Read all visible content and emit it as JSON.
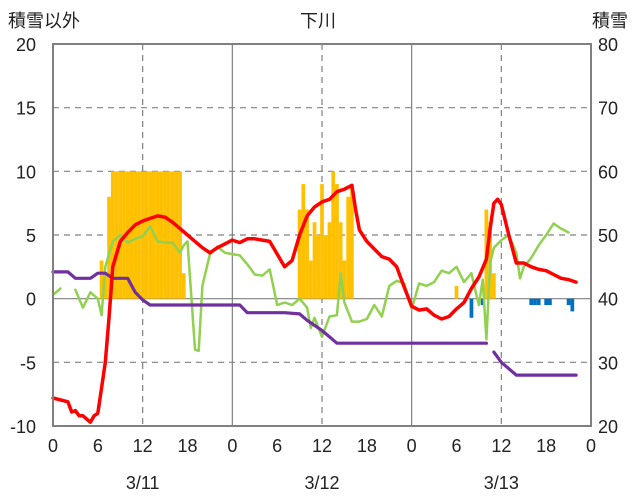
{
  "chart_data": {
    "type": "bar+line",
    "title": "下川",
    "y_left_label": "積雪以外",
    "y_right_label": "積雪",
    "y_left_range": [
      -10,
      20
    ],
    "y_left_ticks": [
      "20",
      "15",
      "10",
      "5",
      "0",
      "-5",
      "-10"
    ],
    "y_right_range": [
      20,
      80
    ],
    "y_right_ticks": [
      "80",
      "70",
      "60",
      "50",
      "40",
      "30",
      "20"
    ],
    "x_hour_range": [
      0,
      72
    ],
    "x_tick_labels": [
      "0",
      "6",
      "12",
      "18",
      "0",
      "6",
      "12",
      "18",
      "0",
      "6",
      "12",
      "18",
      "0"
    ],
    "date_labels": [
      "3/11",
      "3/12",
      "3/13"
    ],
    "colors": {
      "red_series": "#ff0000",
      "green_series": "#92d050",
      "purple_series": "#7030a0",
      "bar_positive": "#ffc000",
      "bar_negative": "#0070c0",
      "frame": "#808080"
    },
    "bars": [
      [
        6.5,
        3
      ],
      [
        7,
        2
      ],
      [
        7.5,
        8
      ],
      [
        8,
        10
      ],
      [
        8.5,
        10
      ],
      [
        9,
        10
      ],
      [
        9.5,
        10
      ],
      [
        10,
        10
      ],
      [
        10.5,
        10
      ],
      [
        11,
        10
      ],
      [
        11.5,
        10
      ],
      [
        12,
        10
      ],
      [
        12.5,
        10
      ],
      [
        13,
        10
      ],
      [
        13.5,
        10
      ],
      [
        14,
        10
      ],
      [
        14.5,
        10
      ],
      [
        15,
        10
      ],
      [
        15.5,
        10
      ],
      [
        16,
        10
      ],
      [
        16.5,
        10
      ],
      [
        17,
        10
      ],
      [
        17.5,
        2
      ],
      [
        33,
        7
      ],
      [
        33.5,
        9
      ],
      [
        34,
        7
      ],
      [
        34.5,
        3
      ],
      [
        35,
        6
      ],
      [
        35.5,
        5
      ],
      [
        36,
        9
      ],
      [
        36.5,
        5
      ],
      [
        37,
        6
      ],
      [
        37.5,
        10
      ],
      [
        38,
        9
      ],
      [
        38.5,
        6
      ],
      [
        39,
        3
      ],
      [
        39.5,
        8
      ],
      [
        40,
        9
      ],
      [
        54,
        1
      ],
      [
        56,
        -1.5
      ],
      [
        57.5,
        -0.5
      ],
      [
        58,
        7
      ],
      [
        58.5,
        6
      ],
      [
        59,
        2
      ],
      [
        64,
        -0.5
      ],
      [
        64.5,
        -0.5
      ],
      [
        65,
        -0.5
      ],
      [
        66,
        -0.5
      ],
      [
        66.5,
        -0.5
      ],
      [
        69,
        -0.5
      ],
      [
        69.5,
        -1
      ]
    ],
    "red_line": [
      [
        0,
        -7.8
      ],
      [
        2,
        -8.1
      ],
      [
        2.5,
        -8.9
      ],
      [
        3,
        -8.8
      ],
      [
        3.5,
        -9.2
      ],
      [
        4,
        -9.2
      ],
      [
        5,
        -9.7
      ],
      [
        5.5,
        -9.2
      ],
      [
        6,
        -9.0
      ],
      [
        6.5,
        -7.0
      ],
      [
        7,
        -5
      ],
      [
        7.5,
        -1.5
      ],
      [
        8,
        2.5
      ],
      [
        8.5,
        3.5
      ],
      [
        9,
        4.5
      ],
      [
        10,
        5.2
      ],
      [
        11,
        5.8
      ],
      [
        12,
        6.1
      ],
      [
        13,
        6.3
      ],
      [
        14,
        6.5
      ],
      [
        15,
        6.4
      ],
      [
        16,
        6.0
      ],
      [
        17,
        5.5
      ],
      [
        18,
        5.0
      ],
      [
        19,
        4.5
      ],
      [
        20,
        4.0
      ],
      [
        21,
        3.6
      ],
      [
        22,
        4.0
      ],
      [
        23,
        4.3
      ],
      [
        24,
        4.6
      ],
      [
        25,
        4.4
      ],
      [
        26,
        4.7
      ],
      [
        27,
        4.7
      ],
      [
        28,
        4.6
      ],
      [
        29,
        4.5
      ],
      [
        30,
        3.5
      ],
      [
        31,
        2.5
      ],
      [
        32,
        3.0
      ],
      [
        33,
        5.0
      ],
      [
        34,
        6.5
      ],
      [
        35,
        7.2
      ],
      [
        36,
        7.6
      ],
      [
        37,
        7.8
      ],
      [
        38,
        8.4
      ],
      [
        39,
        8.6
      ],
      [
        40,
        8.9
      ],
      [
        40.5,
        7.0
      ],
      [
        41,
        5.4
      ],
      [
        42,
        4.5
      ],
      [
        43,
        3.9
      ],
      [
        44,
        3.3
      ],
      [
        45,
        3.1
      ],
      [
        46,
        2.5
      ],
      [
        47,
        0.9
      ],
      [
        48,
        -0.6
      ],
      [
        49,
        -0.9
      ],
      [
        50,
        -0.8
      ],
      [
        51,
        -1.3
      ],
      [
        52,
        -1.6
      ],
      [
        53,
        -1.4
      ],
      [
        54,
        -0.8
      ],
      [
        55,
        -0.3
      ],
      [
        56,
        0.8
      ],
      [
        57,
        1.7
      ],
      [
        58,
        3.1
      ],
      [
        58.5,
        5.5
      ],
      [
        59,
        7.5
      ],
      [
        59.5,
        7.8
      ],
      [
        60,
        7.4
      ],
      [
        61,
        5.0
      ],
      [
        62,
        2.8
      ],
      [
        63,
        2.8
      ],
      [
        64,
        2.5
      ],
      [
        65,
        2.3
      ],
      [
        66,
        2.2
      ],
      [
        67,
        1.9
      ],
      [
        68,
        1.6
      ],
      [
        69,
        1.5
      ],
      [
        70,
        1.3
      ]
    ],
    "green_line_segments": [
      [
        [
          0,
          0.3
        ],
        [
          1,
          0.8
        ]
      ],
      [
        [
          3,
          0.7
        ],
        [
          4,
          -0.7
        ],
        [
          5,
          0.5
        ],
        [
          6,
          0
        ],
        [
          6.5,
          -1.3
        ],
        [
          7,
          2.5
        ],
        [
          8,
          4.5
        ],
        [
          9,
          5.0
        ],
        [
          10,
          4.4
        ],
        [
          11,
          4.7
        ],
        [
          12,
          4.9
        ],
        [
          13,
          5.7
        ],
        [
          14,
          4.5
        ],
        [
          15,
          4.4
        ],
        [
          16,
          4.4
        ],
        [
          17,
          3.6
        ],
        [
          17.5,
          4.2
        ],
        [
          18,
          4.5
        ],
        [
          19,
          -4.0
        ],
        [
          19.5,
          -4.1
        ],
        [
          20,
          1.0
        ],
        [
          21,
          3.5
        ],
        [
          22,
          4.1
        ],
        [
          23,
          3.6
        ],
        [
          24,
          3.5
        ],
        [
          25,
          3.4
        ],
        [
          26,
          2.7
        ],
        [
          27,
          1.9
        ],
        [
          28,
          1.8
        ],
        [
          29,
          2.3
        ],
        [
          30,
          -0.5
        ],
        [
          31,
          -0.3
        ],
        [
          32,
          -0.5
        ],
        [
          33,
          0
        ],
        [
          34,
          -0.7
        ],
        [
          34.5,
          -2.3
        ],
        [
          35,
          -1.5
        ],
        [
          36,
          -3.0
        ],
        [
          37,
          -1.4
        ],
        [
          38,
          -1.3
        ],
        [
          38.5,
          2.0
        ],
        [
          39,
          -0.3
        ],
        [
          40,
          -1.8
        ],
        [
          41,
          -1.8
        ],
        [
          42,
          -1.6
        ],
        [
          43,
          -0.5
        ],
        [
          44,
          -1.4
        ],
        [
          45,
          1.0
        ],
        [
          46,
          1.4
        ],
        [
          47,
          1.2
        ],
        [
          48,
          -0.8
        ],
        [
          49,
          1.2
        ],
        [
          50,
          1.0
        ],
        [
          51,
          1.3
        ],
        [
          52,
          2.2
        ],
        [
          53,
          2.0
        ],
        [
          54,
          2.5
        ],
        [
          55,
          1.3
        ],
        [
          56,
          2.0
        ],
        [
          56.5,
          0.7
        ],
        [
          57,
          -0.5
        ],
        [
          57.5,
          1.5
        ],
        [
          58,
          -3.2
        ],
        [
          58.5,
          2.8
        ],
        [
          59,
          4.0
        ],
        [
          60,
          4.6
        ],
        [
          61,
          5.0
        ],
        [
          62,
          3.6
        ],
        [
          62.5,
          1.6
        ],
        [
          63,
          2.5
        ],
        [
          64,
          3.2
        ],
        [
          65,
          4.2
        ],
        [
          66,
          5.0
        ],
        [
          67,
          5.9
        ],
        [
          68,
          5.5
        ],
        [
          69,
          5.2
        ]
      ]
    ],
    "purple_line_segments": [
      [
        [
          0,
          2.1
        ],
        [
          2,
          2.1
        ],
        [
          3,
          1.6
        ],
        [
          4,
          1.6
        ],
        [
          5,
          1.6
        ],
        [
          6,
          2.0
        ],
        [
          7,
          2.0
        ],
        [
          8,
          1.6
        ],
        [
          10,
          1.6
        ],
        [
          11,
          0.5
        ],
        [
          12,
          -0.1
        ],
        [
          13,
          -0.5
        ],
        [
          14,
          -0.5
        ],
        [
          17,
          -0.5
        ],
        [
          21,
          -0.5
        ],
        [
          25,
          -0.5
        ],
        [
          26,
          -1.1
        ],
        [
          31,
          -1.1
        ],
        [
          33,
          -1.2
        ],
        [
          34,
          -1.7
        ],
        [
          36,
          -2.5
        ],
        [
          38,
          -3.5
        ],
        [
          40,
          -3.5
        ],
        [
          55,
          -3.5
        ],
        [
          58,
          -3.5
        ]
      ],
      [
        [
          59,
          -4.2
        ],
        [
          60,
          -5.0
        ],
        [
          61,
          -5.5
        ],
        [
          62,
          -6.0
        ],
        [
          70,
          -6.0
        ]
      ]
    ]
  }
}
